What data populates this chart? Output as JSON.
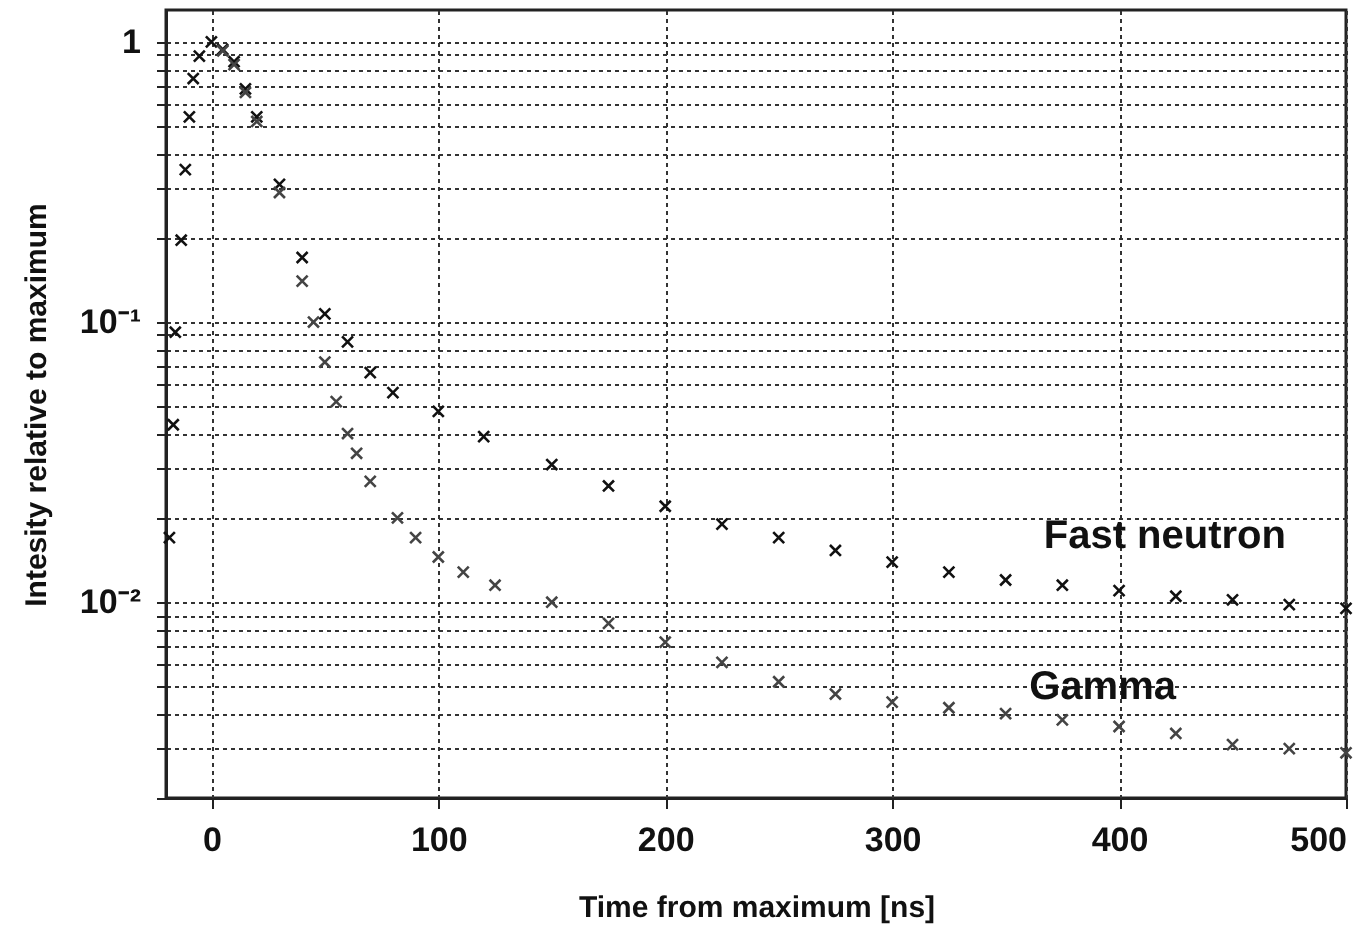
{
  "chart_data": {
    "type": "scatter",
    "xlabel": "Time from maximum [ns]",
    "ylabel": "Intesity relative to maximum",
    "log": "y",
    "grid": true,
    "marker": "cross",
    "xlim": [
      -20,
      500
    ],
    "xticks": [
      0,
      100,
      200,
      300,
      400,
      500
    ],
    "ylim": [
      0.002,
      1.3
    ],
    "yticks": [
      {
        "value": 0.002,
        "label": null
      },
      {
        "value": 0.003,
        "label": null
      },
      {
        "value": 0.004,
        "label": null
      },
      {
        "value": 0.005,
        "label": null
      },
      {
        "value": 0.006,
        "label": null
      },
      {
        "value": 0.007,
        "label": null
      },
      {
        "value": 0.008,
        "label": null
      },
      {
        "value": 0.009,
        "label": null
      },
      {
        "value": 0.01,
        "label": "10⁻²"
      },
      {
        "value": 0.02,
        "label": null
      },
      {
        "value": 0.03,
        "label": null
      },
      {
        "value": 0.04,
        "label": null
      },
      {
        "value": 0.05,
        "label": null
      },
      {
        "value": 0.06,
        "label": null
      },
      {
        "value": 0.07,
        "label": null
      },
      {
        "value": 0.08,
        "label": null
      },
      {
        "value": 0.09,
        "label": null
      },
      {
        "value": 0.1,
        "label": "10⁻¹"
      },
      {
        "value": 0.2,
        "label": null
      },
      {
        "value": 0.3,
        "label": null
      },
      {
        "value": 0.4,
        "label": null
      },
      {
        "value": 0.5,
        "label": null
      },
      {
        "value": 0.6,
        "label": null
      },
      {
        "value": 0.7,
        "label": null
      },
      {
        "value": 0.8,
        "label": null
      },
      {
        "value": 0.9,
        "label": null
      },
      {
        "value": 1,
        "label": "1"
      }
    ],
    "series": [
      {
        "name": "Fast neutron",
        "color": "#111111",
        "x": [
          -18.5,
          -16.8,
          -15.9,
          -13.3,
          -11.5,
          -9.7,
          -8,
          -5.3,
          0,
          5,
          10,
          15,
          20,
          30,
          40,
          50,
          60,
          70,
          80,
          100,
          120,
          150,
          175,
          200,
          225,
          250,
          275,
          300,
          325,
          350,
          375,
          400,
          425,
          450,
          475,
          500
        ],
        "values": [
          0.017,
          0.043,
          0.092,
          0.196,
          0.35,
          0.54,
          0.74,
          0.89,
          1,
          0.94,
          0.85,
          0.68,
          0.54,
          0.31,
          0.17,
          0.107,
          0.085,
          0.066,
          0.056,
          0.048,
          0.039,
          0.031,
          0.026,
          0.022,
          0.019,
          0.017,
          0.0153,
          0.0139,
          0.0128,
          0.012,
          0.0115,
          0.011,
          0.0105,
          0.0102,
          0.0098,
          0.0095
        ]
      },
      {
        "name": "Gamma",
        "color": "#444444",
        "x": [
          5,
          10,
          15,
          20,
          30,
          40,
          45,
          50,
          55,
          60,
          64,
          70,
          82,
          90,
          100,
          111,
          125,
          150,
          175,
          200,
          225,
          250,
          275,
          300,
          325,
          350,
          375,
          400,
          425,
          450,
          475,
          500
        ],
        "values": [
          0.93,
          0.83,
          0.66,
          0.52,
          0.29,
          0.14,
          0.1,
          0.072,
          0.052,
          0.04,
          0.034,
          0.027,
          0.02,
          0.017,
          0.0145,
          0.0128,
          0.0115,
          0.01,
          0.0084,
          0.0072,
          0.0061,
          0.0052,
          0.0047,
          0.0044,
          0.0042,
          0.004,
          0.0038,
          0.0036,
          0.0034,
          0.0031,
          0.003,
          0.0029
        ]
      }
    ]
  }
}
